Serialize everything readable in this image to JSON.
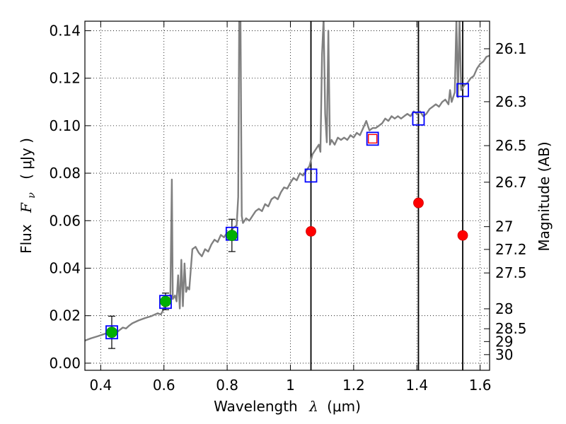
{
  "chart_data": {
    "type": "scatter",
    "xlabel": {
      "prefix": "Wavelength",
      "lambda": "λ",
      "unit": "(μm)"
    },
    "ylabel": {
      "prefix": "Flux",
      "symbol": "F",
      "sub": "ν",
      "unit": "( μJy )"
    },
    "y2label": "Magnitude (AB)",
    "xlim": [
      0.35,
      1.63
    ],
    "ylim": [
      -0.003,
      0.144
    ],
    "grid": true,
    "x_ticks": [
      {
        "v": 0.4,
        "label": "0.4"
      },
      {
        "v": 0.6,
        "label": "0.6"
      },
      {
        "v": 0.8,
        "label": "0.8"
      },
      {
        "v": 1.0,
        "label": "1"
      },
      {
        "v": 1.2,
        "label": "1.2"
      },
      {
        "v": 1.4,
        "label": "1.4"
      },
      {
        "v": 1.6,
        "label": "1.6"
      }
    ],
    "y_ticks": [
      {
        "v": 0.0,
        "label": "0.00"
      },
      {
        "v": 0.02,
        "label": "0.02"
      },
      {
        "v": 0.04,
        "label": "0.04"
      },
      {
        "v": 0.06,
        "label": "0.06"
      },
      {
        "v": 0.08,
        "label": "0.08"
      },
      {
        "v": 0.1,
        "label": "0.10"
      },
      {
        "v": 0.12,
        "label": "0.12"
      },
      {
        "v": 0.14,
        "label": "0.14"
      }
    ],
    "mag_ticks": [
      {
        "flux": 0.1324,
        "label": "26.1"
      },
      {
        "flux": 0.1101,
        "label": "26.3"
      },
      {
        "flux": 0.0916,
        "label": "26.5"
      },
      {
        "flux": 0.0762,
        "label": "26.7"
      },
      {
        "flux": 0.0575,
        "label": "27"
      },
      {
        "flux": 0.0479,
        "label": "27.2"
      },
      {
        "flux": 0.038,
        "label": "27.5"
      },
      {
        "flux": 0.0229,
        "label": "28"
      },
      {
        "flux": 0.0145,
        "label": "28.5"
      },
      {
        "flux": 0.0091,
        "label": "29"
      },
      {
        "flux": 0.0036,
        "label": "30"
      }
    ],
    "vlines": [
      1.065,
      1.405,
      1.545
    ],
    "series": [
      {
        "kind": "spectrum",
        "color": "#808080",
        "points": [
          [
            0.35,
            0.0095
          ],
          [
            0.37,
            0.0105
          ],
          [
            0.39,
            0.0113
          ],
          [
            0.41,
            0.0122
          ],
          [
            0.43,
            0.0132
          ],
          [
            0.44,
            0.0136
          ],
          [
            0.45,
            0.0128
          ],
          [
            0.46,
            0.014
          ],
          [
            0.47,
            0.015
          ],
          [
            0.48,
            0.0146
          ],
          [
            0.49,
            0.0158
          ],
          [
            0.5,
            0.0168
          ],
          [
            0.52,
            0.018
          ],
          [
            0.54,
            0.019
          ],
          [
            0.56,
            0.0198
          ],
          [
            0.58,
            0.021
          ],
          [
            0.59,
            0.0205
          ],
          [
            0.6,
            0.0228
          ],
          [
            0.61,
            0.025
          ],
          [
            0.615,
            0.0245
          ],
          [
            0.62,
            0.0262
          ],
          [
            0.625,
            0.0773
          ],
          [
            0.628,
            0.027
          ],
          [
            0.635,
            0.0285
          ],
          [
            0.64,
            0.026
          ],
          [
            0.645,
            0.037
          ],
          [
            0.65,
            0.023
          ],
          [
            0.655,
            0.0435
          ],
          [
            0.66,
            0.024
          ],
          [
            0.665,
            0.042
          ],
          [
            0.67,
            0.03
          ],
          [
            0.675,
            0.032
          ],
          [
            0.68,
            0.031
          ],
          [
            0.69,
            0.048
          ],
          [
            0.7,
            0.049
          ],
          [
            0.71,
            0.0465
          ],
          [
            0.72,
            0.045
          ],
          [
            0.73,
            0.048
          ],
          [
            0.74,
            0.047
          ],
          [
            0.75,
            0.05
          ],
          [
            0.76,
            0.052
          ],
          [
            0.77,
            0.051
          ],
          [
            0.78,
            0.054
          ],
          [
            0.79,
            0.053
          ],
          [
            0.8,
            0.055
          ],
          [
            0.81,
            0.0555
          ],
          [
            0.82,
            0.057
          ],
          [
            0.83,
            0.058
          ],
          [
            0.835,
            0.07
          ],
          [
            0.838,
            0.145
          ],
          [
            0.842,
            0.145
          ],
          [
            0.846,
            0.062
          ],
          [
            0.85,
            0.059
          ],
          [
            0.86,
            0.061
          ],
          [
            0.87,
            0.06
          ],
          [
            0.88,
            0.062
          ],
          [
            0.89,
            0.064
          ],
          [
            0.9,
            0.065
          ],
          [
            0.91,
            0.064
          ],
          [
            0.92,
            0.067
          ],
          [
            0.93,
            0.066
          ],
          [
            0.94,
            0.069
          ],
          [
            0.95,
            0.07
          ],
          [
            0.96,
            0.069
          ],
          [
            0.97,
            0.072
          ],
          [
            0.98,
            0.074
          ],
          [
            0.99,
            0.0735
          ],
          [
            1.0,
            0.076
          ],
          [
            1.01,
            0.078
          ],
          [
            1.02,
            0.077
          ],
          [
            1.03,
            0.08
          ],
          [
            1.04,
            0.079
          ],
          [
            1.05,
            0.081
          ],
          [
            1.06,
            0.083
          ],
          [
            1.07,
            0.088
          ],
          [
            1.08,
            0.09
          ],
          [
            1.09,
            0.092
          ],
          [
            1.095,
            0.089
          ],
          [
            1.1,
            0.13
          ],
          [
            1.105,
            0.145
          ],
          [
            1.11,
            0.105
          ],
          [
            1.115,
            0.093
          ],
          [
            1.12,
            0.14
          ],
          [
            1.125,
            0.092
          ],
          [
            1.13,
            0.094
          ],
          [
            1.14,
            0.092
          ],
          [
            1.15,
            0.095
          ],
          [
            1.16,
            0.094
          ],
          [
            1.17,
            0.095
          ],
          [
            1.18,
            0.094
          ],
          [
            1.19,
            0.096
          ],
          [
            1.2,
            0.095
          ],
          [
            1.21,
            0.097
          ],
          [
            1.22,
            0.096
          ],
          [
            1.23,
            0.099
          ],
          [
            1.24,
            0.102
          ],
          [
            1.25,
            0.098
          ],
          [
            1.26,
            0.099
          ],
          [
            1.27,
            0.099
          ],
          [
            1.28,
            0.1
          ],
          [
            1.29,
            0.101
          ],
          [
            1.3,
            0.103
          ],
          [
            1.31,
            0.102
          ],
          [
            1.32,
            0.104
          ],
          [
            1.33,
            0.103
          ],
          [
            1.34,
            0.104
          ],
          [
            1.35,
            0.103
          ],
          [
            1.36,
            0.104
          ],
          [
            1.37,
            0.105
          ],
          [
            1.38,
            0.104
          ],
          [
            1.39,
            0.106
          ],
          [
            1.4,
            0.105
          ],
          [
            1.41,
            0.106
          ],
          [
            1.42,
            0.104
          ],
          [
            1.43,
            0.105
          ],
          [
            1.44,
            0.107
          ],
          [
            1.45,
            0.108
          ],
          [
            1.46,
            0.109
          ],
          [
            1.47,
            0.108
          ],
          [
            1.48,
            0.11
          ],
          [
            1.49,
            0.111
          ],
          [
            1.5,
            0.109
          ],
          [
            1.505,
            0.115
          ],
          [
            1.51,
            0.11
          ],
          [
            1.52,
            0.114
          ],
          [
            1.525,
            0.145
          ],
          [
            1.53,
            0.112
          ],
          [
            1.535,
            0.145
          ],
          [
            1.54,
            0.115
          ],
          [
            1.55,
            0.117
          ],
          [
            1.56,
            0.118
          ],
          [
            1.57,
            0.12
          ],
          [
            1.58,
            0.121
          ],
          [
            1.59,
            0.124
          ],
          [
            1.6,
            0.126
          ],
          [
            1.61,
            0.127
          ],
          [
            1.62,
            0.129
          ],
          [
            1.63,
            0.1295
          ]
        ]
      },
      {
        "kind": "blue-squares",
        "points": [
          [
            0.435,
            0.013
          ],
          [
            0.605,
            0.0258
          ],
          [
            0.815,
            0.0545
          ],
          [
            1.065,
            0.079
          ],
          [
            1.26,
            0.0945
          ],
          [
            1.405,
            0.103
          ],
          [
            1.545,
            0.115
          ]
        ]
      },
      {
        "kind": "green-circles",
        "points": [
          {
            "x": 0.435,
            "y": 0.013,
            "err": 0.0068
          },
          {
            "x": 0.605,
            "y": 0.026,
            "err": 0.0035
          },
          {
            "x": 0.815,
            "y": 0.0538,
            "err": 0.0068
          }
        ]
      },
      {
        "kind": "red-circles",
        "points": [
          [
            1.065,
            0.0555
          ],
          [
            1.405,
            0.0675
          ],
          [
            1.545,
            0.0538
          ]
        ]
      },
      {
        "kind": "red-square",
        "points": [
          [
            1.26,
            0.0945
          ]
        ]
      }
    ]
  }
}
